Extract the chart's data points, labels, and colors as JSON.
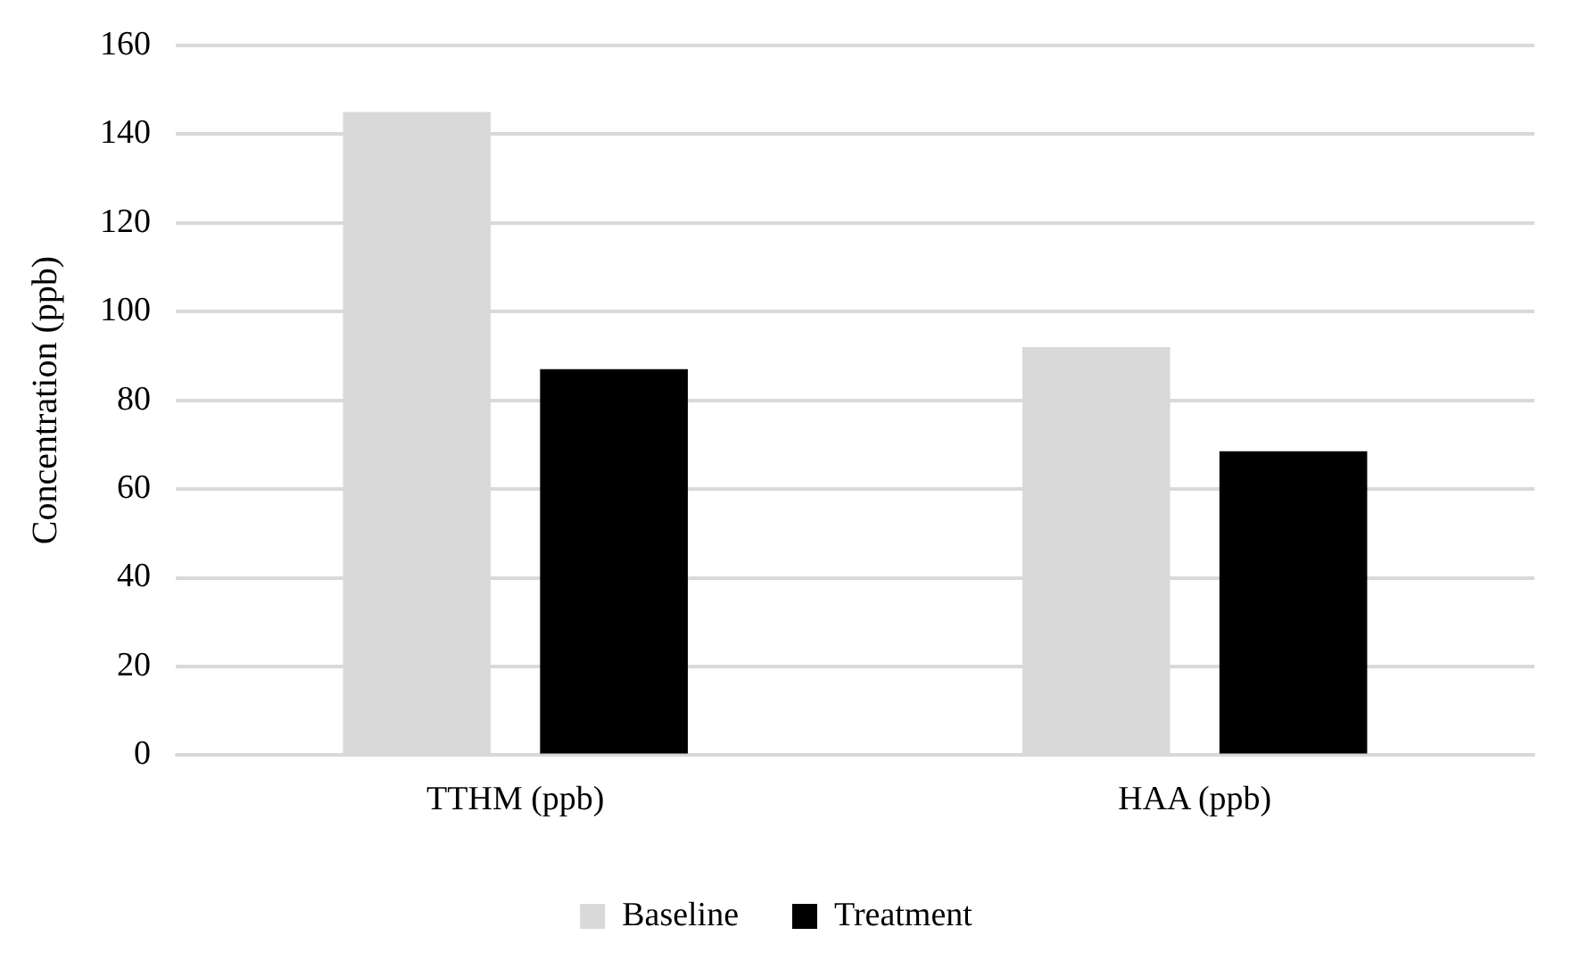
{
  "chart_data": {
    "type": "bar",
    "ylabel": "Concentration (ppb)",
    "categories": [
      "TTHM (ppb)",
      "HAA (ppb)"
    ],
    "series": [
      {
        "name": "Baseline",
        "color": "#d9d9d9",
        "values": [
          145,
          92
        ]
      },
      {
        "name": "Treatment",
        "color": "#000000",
        "values": [
          87,
          68.5
        ]
      }
    ],
    "ylim": [
      0,
      160
    ],
    "yticks": [
      0,
      20,
      40,
      60,
      80,
      100,
      120,
      140,
      160
    ],
    "grid": "y",
    "legend": "bottom"
  }
}
